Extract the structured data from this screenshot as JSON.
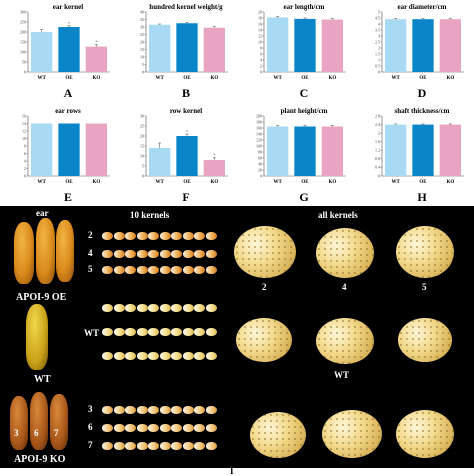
{
  "chart_data": [
    {
      "panel": "A",
      "type": "bar",
      "title": "ear kernel",
      "categories": [
        "WT",
        "OE",
        "KO"
      ],
      "values": [
        200,
        225,
        127
      ],
      "errors": [
        12,
        6,
        10
      ],
      "ylim": [
        0,
        300
      ],
      "yticks": [
        0,
        50,
        100,
        150,
        200,
        250,
        300
      ],
      "colors": [
        "#a8daf3",
        "#0a86c8",
        "#e8a4c2"
      ],
      "significance": [
        "",
        "*",
        "*"
      ],
      "grid": false
    },
    {
      "panel": "B",
      "type": "bar",
      "title": "hundred kernel weight/g",
      "categories": [
        "WT",
        "OE",
        "KO"
      ],
      "values": [
        31.5,
        32.5,
        29.5
      ],
      "errors": [
        0.5,
        0.5,
        0.8
      ],
      "ylim": [
        0,
        40
      ],
      "yticks": [
        0,
        5,
        10,
        15,
        20,
        25,
        30,
        35,
        40
      ],
      "colors": [
        "#a8daf3",
        "#0a86c8",
        "#e8a4c2"
      ],
      "significance": [
        "",
        "",
        ""
      ],
      "grid": false
    },
    {
      "panel": "C",
      "type": "bar",
      "title": "ear length/cm",
      "categories": [
        "WT",
        "OE",
        "KO"
      ],
      "values": [
        18.2,
        17.7,
        17.5
      ],
      "errors": [
        0.3,
        0.3,
        0.3
      ],
      "ylim": [
        0,
        20
      ],
      "yticks": [
        0,
        2,
        4,
        6,
        8,
        10,
        12,
        14,
        16,
        18,
        20
      ],
      "colors": [
        "#a8daf3",
        "#0a86c8",
        "#e8a4c2"
      ],
      "significance": [
        "",
        "",
        ""
      ],
      "grid": false
    },
    {
      "panel": "D",
      "type": "bar",
      "title": "ear diameter/cm",
      "categories": [
        "WT",
        "OE",
        "KO"
      ],
      "values": [
        4.4,
        4.4,
        4.4
      ],
      "errors": [
        0.05,
        0.05,
        0.05
      ],
      "ylim": [
        0,
        5
      ],
      "yticks": [
        0,
        0.5,
        1,
        1.5,
        2,
        2.5,
        3,
        3.5,
        4,
        4.5,
        5
      ],
      "colors": [
        "#a8daf3",
        "#0a86c8",
        "#e8a4c2"
      ],
      "significance": [
        "",
        "",
        ""
      ],
      "grid": false
    },
    {
      "panel": "E",
      "type": "bar",
      "title": "ear rows",
      "categories": [
        "WT",
        "OE",
        "KO"
      ],
      "values": [
        14,
        14,
        14
      ],
      "errors": [
        0,
        0,
        0
      ],
      "ylim": [
        0,
        16
      ],
      "yticks": [
        0,
        2,
        4,
        6,
        8,
        10,
        12,
        14,
        16
      ],
      "colors": [
        "#a8daf3",
        "#0a86c8",
        "#e8a4c2"
      ],
      "significance": [
        "",
        "",
        ""
      ],
      "grid": false
    },
    {
      "panel": "F",
      "type": "bar",
      "title": "row kernel",
      "categories": [
        "WT",
        "OE",
        "KO"
      ],
      "values": [
        14,
        20,
        8
      ],
      "errors": [
        2.5,
        1,
        1.2
      ],
      "ylim": [
        0,
        30
      ],
      "yticks": [
        0,
        5,
        10,
        15,
        20,
        25,
        30
      ],
      "colors": [
        "#a8daf3",
        "#0a86c8",
        "#e8a4c2"
      ],
      "significance": [
        "",
        "*",
        "*"
      ],
      "grid": false
    },
    {
      "panel": "G",
      "type": "bar",
      "title": "plant height/cm",
      "categories": [
        "WT",
        "OE",
        "KO"
      ],
      "values": [
        165,
        165,
        165
      ],
      "errors": [
        3,
        3,
        3
      ],
      "ylim": [
        0,
        200
      ],
      "yticks": [
        0,
        20,
        40,
        60,
        80,
        100,
        120,
        140,
        160,
        180,
        200
      ],
      "colors": [
        "#a8daf3",
        "#0a86c8",
        "#e8a4c2"
      ],
      "significance": [
        "",
        "",
        ""
      ],
      "grid": false
    },
    {
      "panel": "H",
      "type": "bar",
      "title": "shaft thickness/cm",
      "categories": [
        "WT",
        "OE",
        "KO"
      ],
      "values": [
        2.4,
        2.4,
        2.4
      ],
      "errors": [
        0.03,
        0.03,
        0.03
      ],
      "ylim": [
        0,
        2.8
      ],
      "yticks": [
        0,
        0.4,
        0.8,
        1.2,
        1.6,
        2,
        2.4,
        2.8
      ],
      "colors": [
        "#a8daf3",
        "#0a86c8",
        "#e8a4c2"
      ],
      "significance": [
        "",
        "",
        ""
      ],
      "grid": false
    }
  ],
  "photo": {
    "headers": {
      "ear": "ear",
      "ten_kernels": "10 kernels",
      "all_kernels": "all kernels"
    },
    "oe_label": "APOI-9 OE",
    "wt_label": "WT",
    "ko_label": "APOI-9 KO",
    "oe_rows": [
      "2",
      "4",
      "5"
    ],
    "wt_row": "WT",
    "ko_rows": [
      "3",
      "6",
      "7"
    ],
    "oe_piles": [
      "2",
      "4",
      "5"
    ],
    "wt_pile": "WT",
    "ko_ears": [
      "3",
      "6",
      "7"
    ],
    "panel_label": "I"
  }
}
